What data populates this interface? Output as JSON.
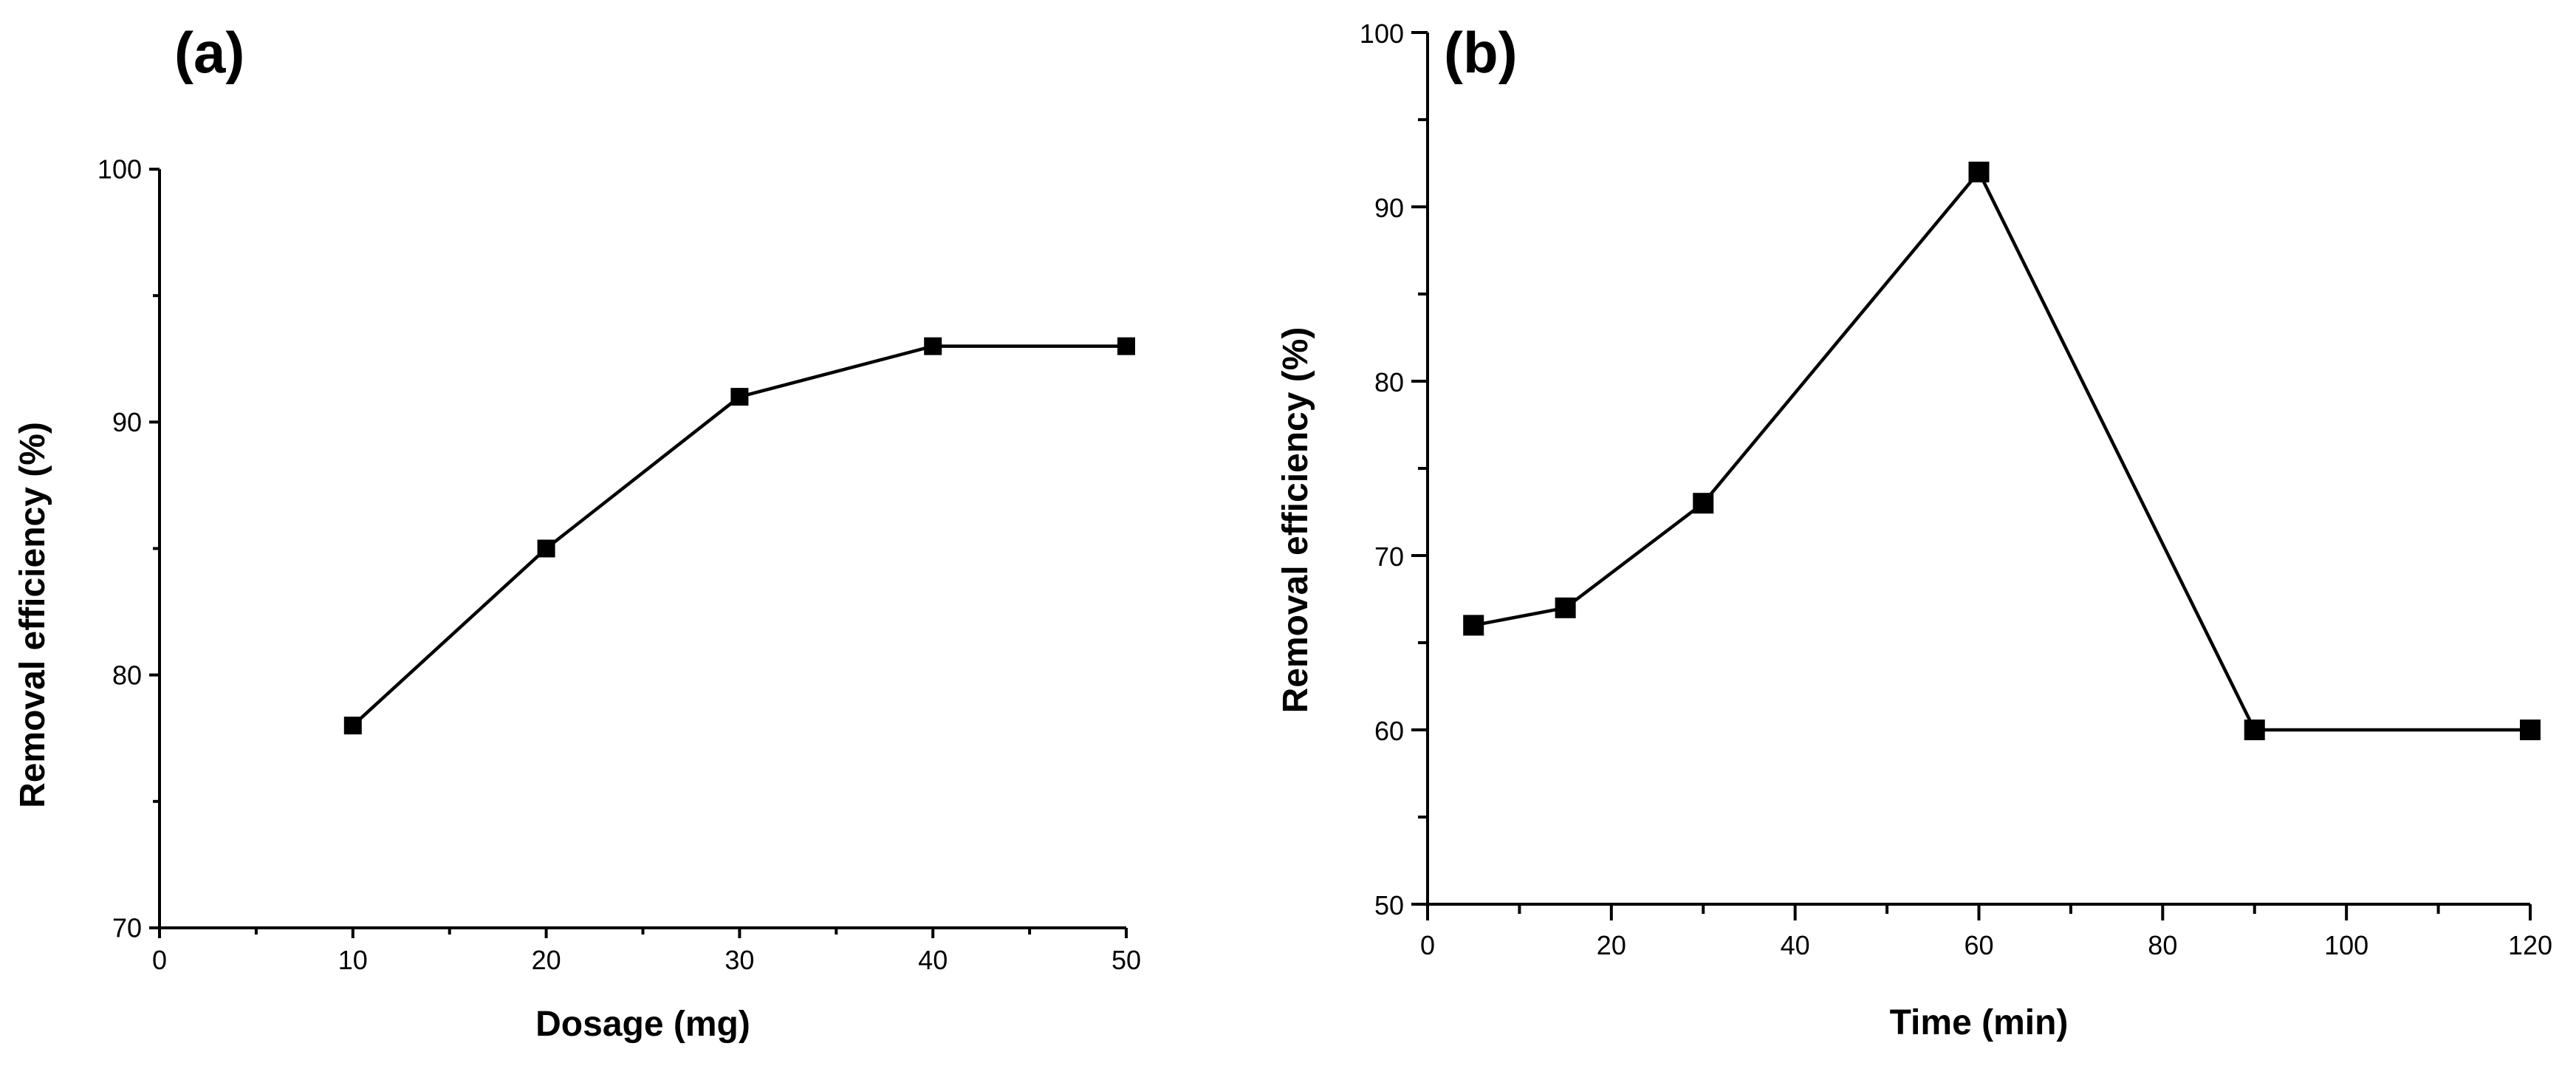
{
  "chart_data": [
    {
      "type": "line",
      "panel_label": "(a)",
      "title": "",
      "xlabel": "Dosage (mg)",
      "ylabel": "Removal efficiency (%)",
      "xlim": [
        0,
        50
      ],
      "ylim": [
        70,
        100
      ],
      "x_major_ticks": [
        0,
        10,
        20,
        30,
        40,
        50
      ],
      "x_minor_ticks": [
        5,
        15,
        25,
        35,
        45
      ],
      "y_major_ticks": [
        70,
        80,
        90,
        100
      ],
      "y_minor_ticks": [
        75,
        85,
        95
      ],
      "x_tick_labels": [
        "0",
        "10",
        "20",
        "30",
        "40",
        "50"
      ],
      "y_tick_labels": [
        "70",
        "80",
        "90",
        "100"
      ],
      "grid": false,
      "series": [
        {
          "name": "Removal efficiency",
          "marker": "square",
          "x": [
            10,
            20,
            30,
            40,
            50
          ],
          "values": [
            78,
            85,
            91,
            93,
            93
          ]
        }
      ]
    },
    {
      "type": "line",
      "panel_label": "(b)",
      "title": "",
      "xlabel": "Time (min)",
      "ylabel": "Removal efficiency (%)",
      "xlim": [
        0,
        120
      ],
      "ylim": [
        50,
        100
      ],
      "x_major_ticks": [
        0,
        20,
        40,
        60,
        80,
        100,
        120
      ],
      "x_minor_ticks": [
        10,
        30,
        50,
        70,
        90,
        110
      ],
      "y_major_ticks": [
        50,
        60,
        70,
        80,
        90,
        100
      ],
      "y_minor_ticks": [
        55,
        65,
        75,
        85,
        95
      ],
      "x_tick_labels": [
        "0",
        "20",
        "40",
        "60",
        "80",
        "100",
        "120"
      ],
      "y_tick_labels": [
        "50",
        "60",
        "70",
        "80",
        "90",
        "100"
      ],
      "grid": false,
      "series": [
        {
          "name": "Removal efficiency",
          "marker": "square",
          "x": [
            5,
            15,
            30,
            60,
            90,
            120
          ],
          "values": [
            66,
            67,
            73,
            92,
            60,
            60
          ]
        }
      ]
    }
  ]
}
